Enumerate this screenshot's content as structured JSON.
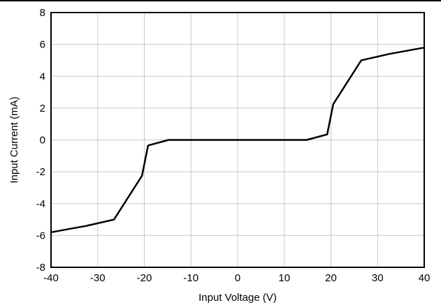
{
  "chart_data": {
    "type": "line",
    "xlabel": "Input Voltage (V)",
    "ylabel": "Input Current (mA)",
    "xlim": [
      -40,
      40
    ],
    "ylim": [
      -8,
      8
    ],
    "xticks": [
      -40,
      -30,
      -20,
      -10,
      0,
      10,
      20,
      30,
      40
    ],
    "yticks": [
      -8,
      -6,
      -4,
      -2,
      0,
      2,
      4,
      6,
      8
    ],
    "xtick_labels": [
      "-40",
      "-30",
      "-20",
      "-10",
      "0",
      "10",
      "20",
      "30",
      "40"
    ],
    "ytick_labels": [
      "-8",
      "-6",
      "-4",
      "-2",
      "0",
      "2",
      "4",
      "6",
      "8"
    ],
    "grid": true,
    "series": [
      {
        "color": "#000000",
        "x": [
          -40,
          -32.5,
          -26.5,
          -20.5,
          -19.2,
          -14.8,
          14.8,
          19.2,
          20.5,
          26.5,
          32.5,
          40
        ],
        "y": [
          -5.8,
          -5.4,
          -5.0,
          -2.25,
          -0.35,
          0.0,
          0.0,
          0.35,
          2.25,
          5.0,
          5.4,
          5.8
        ]
      }
    ]
  }
}
